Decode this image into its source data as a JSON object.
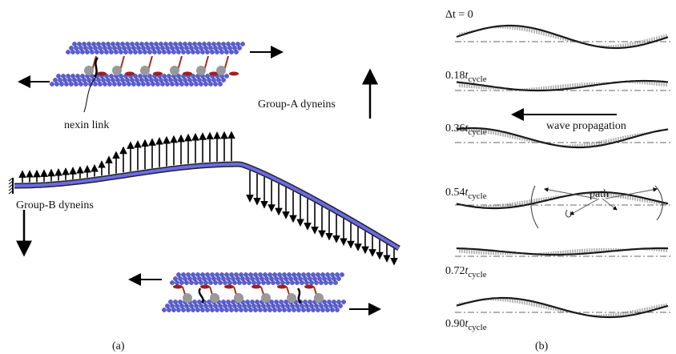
{
  "panel_a": {
    "nexin_label": "nexin link",
    "group_a": "Group-A dyneins",
    "group_b": "Group-B dyneins",
    "caption": "(a)"
  },
  "panel_b": {
    "frames": [
      {
        "label": "Δt = 0"
      },
      {
        "value": "0.18",
        "var": "t",
        "sub": "cycle"
      },
      {
        "value": "0.36",
        "var": "t",
        "sub": "cycle"
      },
      {
        "value": "0.54",
        "var": "t",
        "sub": "cycle"
      },
      {
        "value": "0.72",
        "var": "t",
        "sub": "cycle"
      },
      {
        "value": "0.90",
        "var": "t",
        "sub": "cycle"
      }
    ],
    "wave_label": "wave propagation",
    "path_label": "path",
    "caption": "(b)"
  }
}
